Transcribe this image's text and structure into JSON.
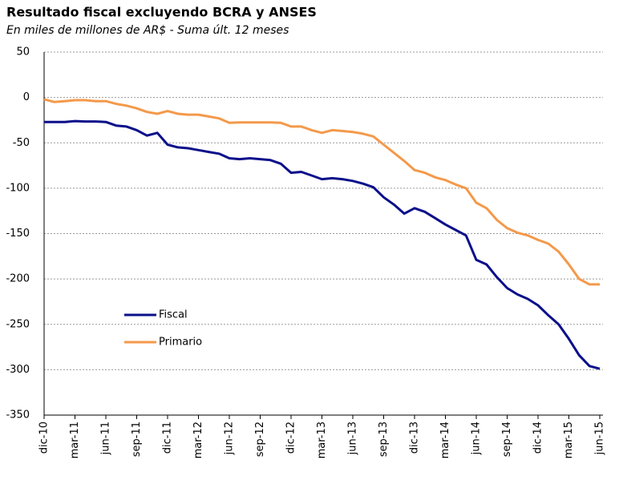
{
  "chart_data": {
    "type": "line",
    "title": "Resultado fiscal excluyendo BCRA y ANSES",
    "subtitle": "En miles de millones de AR$ - Suma últ. 12 meses",
    "categories": [
      "dic-10",
      null,
      null,
      "mar-11",
      null,
      null,
      "jun-11",
      null,
      null,
      "sep-11",
      null,
      null,
      "dic-11",
      null,
      null,
      "mar-12",
      null,
      null,
      "jun-12",
      null,
      null,
      "sep-12",
      null,
      null,
      "dic-12",
      null,
      null,
      "mar-13",
      null,
      null,
      "jun-13",
      null,
      null,
      "sep-13",
      null,
      null,
      "dic-13",
      null,
      null,
      "mar-14",
      null,
      null,
      "jun-14",
      null,
      null,
      "sep-14",
      null,
      null,
      "dic-14",
      null,
      null,
      "mar-15",
      null,
      null,
      "jun-15"
    ],
    "series": [
      {
        "name": "Fiscal",
        "color": "#0a0f8a",
        "values": [
          -27,
          -27,
          -27,
          -26,
          -26.5,
          -26.5,
          -27,
          -31,
          -32,
          -36,
          -42,
          -39,
          -52,
          -55,
          -56,
          -58,
          -60,
          -62,
          -67,
          -68,
          -67,
          -68,
          -69,
          -73,
          -83,
          -82,
          -86,
          -90,
          -89,
          -90,
          -92,
          -95,
          -99,
          -110,
          -118,
          -128,
          -122,
          -126,
          -133,
          -140,
          -146,
          -152,
          -179,
          -184,
          -198,
          -210,
          -217,
          -222,
          -229,
          -240,
          -250,
          -266,
          -284,
          -296,
          -299
        ]
      },
      {
        "name": "Primario",
        "color": "#f4994a",
        "values": [
          -2,
          -5,
          -4,
          -3,
          -3,
          -4,
          -4,
          -7,
          -9,
          -12,
          -16,
          -18,
          -15,
          -18,
          -19,
          -19,
          -21,
          -23,
          -28,
          -27.5,
          -27.5,
          -27.5,
          -27.5,
          -28,
          -32,
          -32,
          -36,
          -39,
          -36,
          -37,
          -38,
          -40,
          -43,
          -52,
          -61,
          -70,
          -80,
          -83,
          -88,
          -91,
          -96,
          -100,
          -116,
          -122,
          -135,
          -144,
          -149,
          -152,
          -157,
          -161,
          -170,
          -184,
          -200,
          -206,
          -206
        ]
      }
    ],
    "ylim": [
      -350,
      50
    ],
    "yticks": [
      -350,
      -300,
      -250,
      -200,
      -150,
      -100,
      -50,
      0,
      50
    ],
    "grid": true
  }
}
